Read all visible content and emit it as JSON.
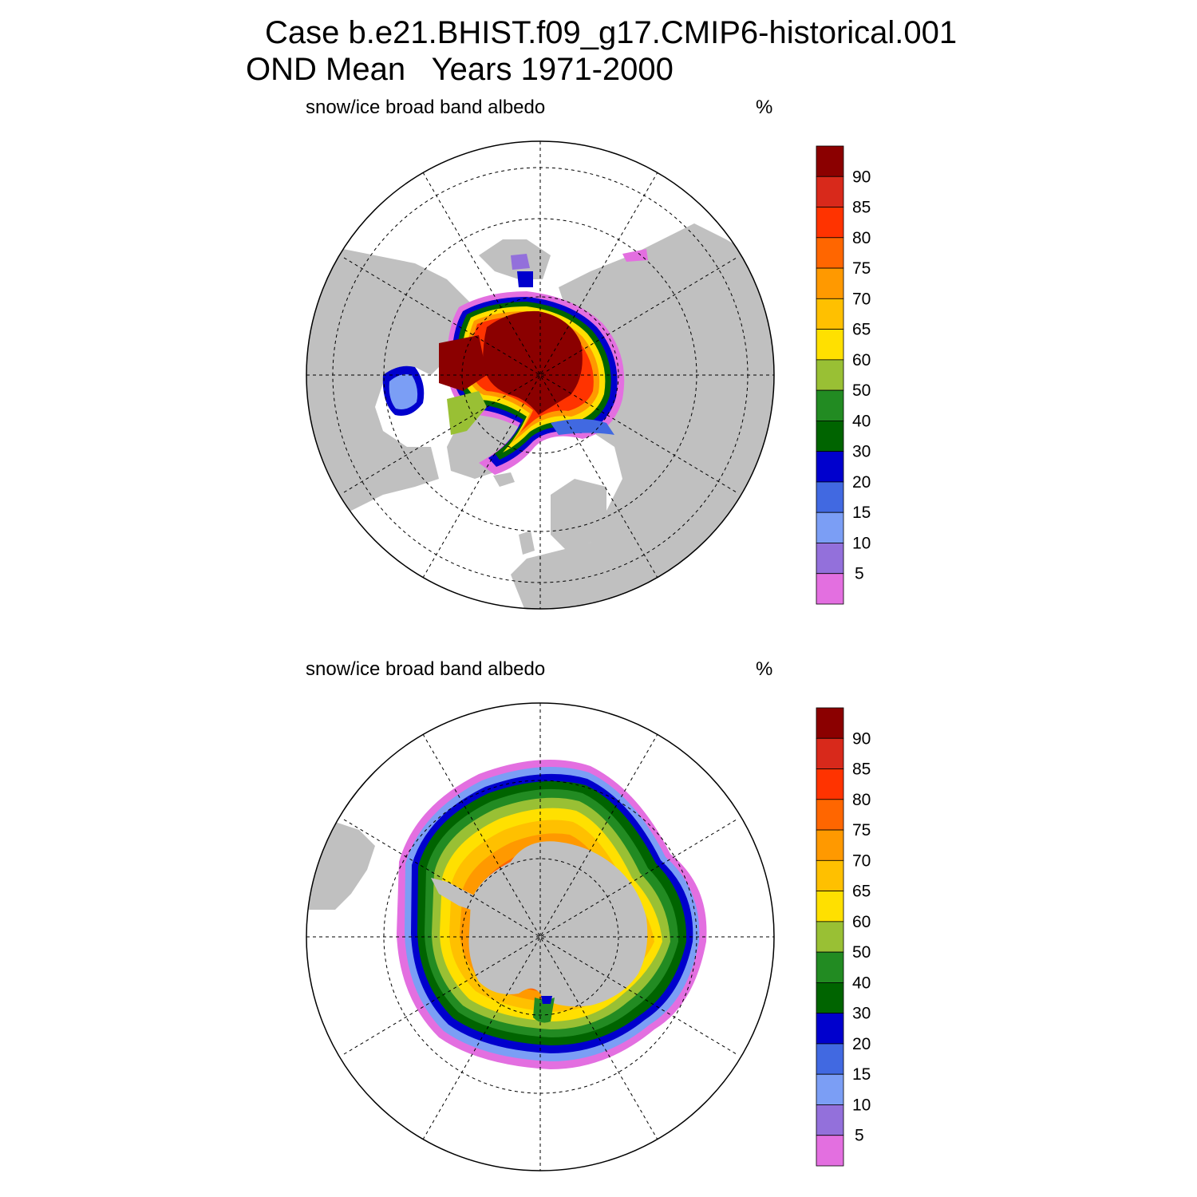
{
  "title": {
    "line1": "Case b.e21.BHIST.f09_g17.CMIP6-historical.001",
    "line2": "OND Mean   Years 1971-2000"
  },
  "panels": [
    {
      "id": "north",
      "variable": "snow/ice broad band albedo",
      "units": "%",
      "hemisphere": "Arctic (north polar stereographic)"
    },
    {
      "id": "south",
      "variable": "snow/ice broad band albedo",
      "units": "%",
      "hemisphere": "Antarctic (south polar stereographic)"
    }
  ],
  "colorbar": {
    "labels": [
      "90",
      "85",
      "80",
      "75",
      "70",
      "65",
      "60",
      "50",
      "40",
      "30",
      "20",
      "15",
      "10",
      "5"
    ],
    "colors": [
      "#8b0000",
      "#d8291b",
      "#ff3300",
      "#ff6600",
      "#ff9900",
      "#ffc000",
      "#ffe000",
      "#99c034",
      "#228b22",
      "#006400",
      "#0000cd",
      "#4169e1",
      "#7b9ef5",
      "#9370db",
      "#e36fe0"
    ]
  },
  "map_colors": {
    "land": "#c0c0c0",
    "ocean": "#ffffff",
    "grid": "#000000"
  }
}
